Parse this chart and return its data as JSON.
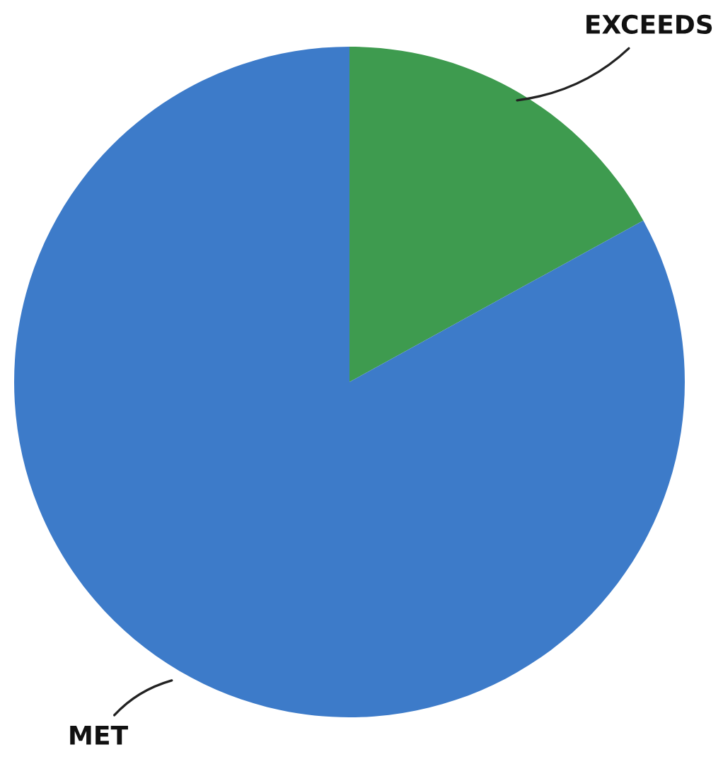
{
  "chart_data": {
    "type": "pie",
    "categories": [
      "EXCEEDS",
      "MET"
    ],
    "values": [
      17,
      83
    ],
    "colors": [
      "#3e9b4f",
      "#3d7bc9"
    ]
  }
}
